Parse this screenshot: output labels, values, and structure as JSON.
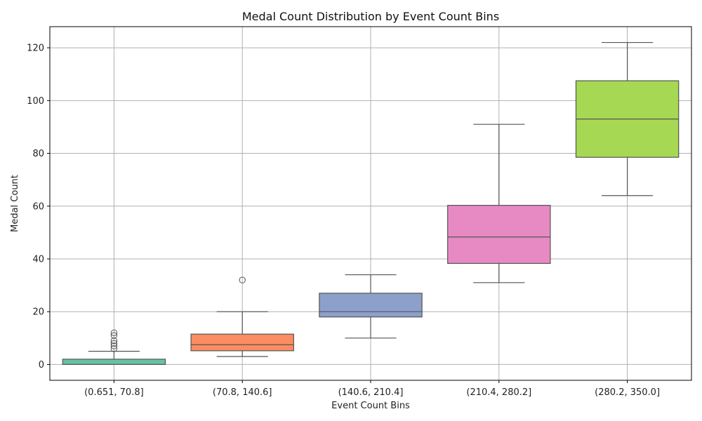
{
  "chart_data": {
    "type": "box",
    "title": "Medal Count Distribution by Event Count Bins",
    "xlabel": "Event Count Bins",
    "ylabel": "Medal Count",
    "ylim": [
      -6,
      128
    ],
    "yticks": [
      0,
      20,
      40,
      60,
      80,
      100,
      120
    ],
    "grid": true,
    "categories": [
      "(0.651, 70.8]",
      "(70.8, 140.6]",
      "(140.6, 210.4]",
      "(210.4, 280.2]",
      "(280.2, 350.0]"
    ],
    "boxes": [
      {
        "category": "(0.651, 70.8]",
        "whisker_low": 0,
        "q1": 0,
        "median": 0,
        "q3": 2,
        "whisker_high": 5,
        "outliers": [
          6,
          7,
          8,
          9,
          11,
          12
        ],
        "color": "#66c2a5"
      },
      {
        "category": "(70.8, 140.6]",
        "whisker_low": 3,
        "q1": 5.2,
        "median": 7.5,
        "q3": 11.5,
        "whisker_high": 20,
        "outliers": [
          32
        ],
        "color": "#fc8d62"
      },
      {
        "category": "(140.6, 210.4]",
        "whisker_low": 10,
        "q1": 18,
        "median": 20,
        "q3": 27,
        "whisker_high": 34,
        "outliers": [],
        "color": "#8da0cb"
      },
      {
        "category": "(210.4, 280.2]",
        "whisker_low": 31,
        "q1": 38.3,
        "median": 48.3,
        "q3": 60.3,
        "whisker_high": 91,
        "outliers": [],
        "color": "#e78ac3"
      },
      {
        "category": "(280.2, 350.0]",
        "whisker_low": 64,
        "q1": 78.5,
        "median": 93,
        "q3": 107.5,
        "whisker_high": 122,
        "outliers": [],
        "color": "#a6d854"
      }
    ]
  }
}
